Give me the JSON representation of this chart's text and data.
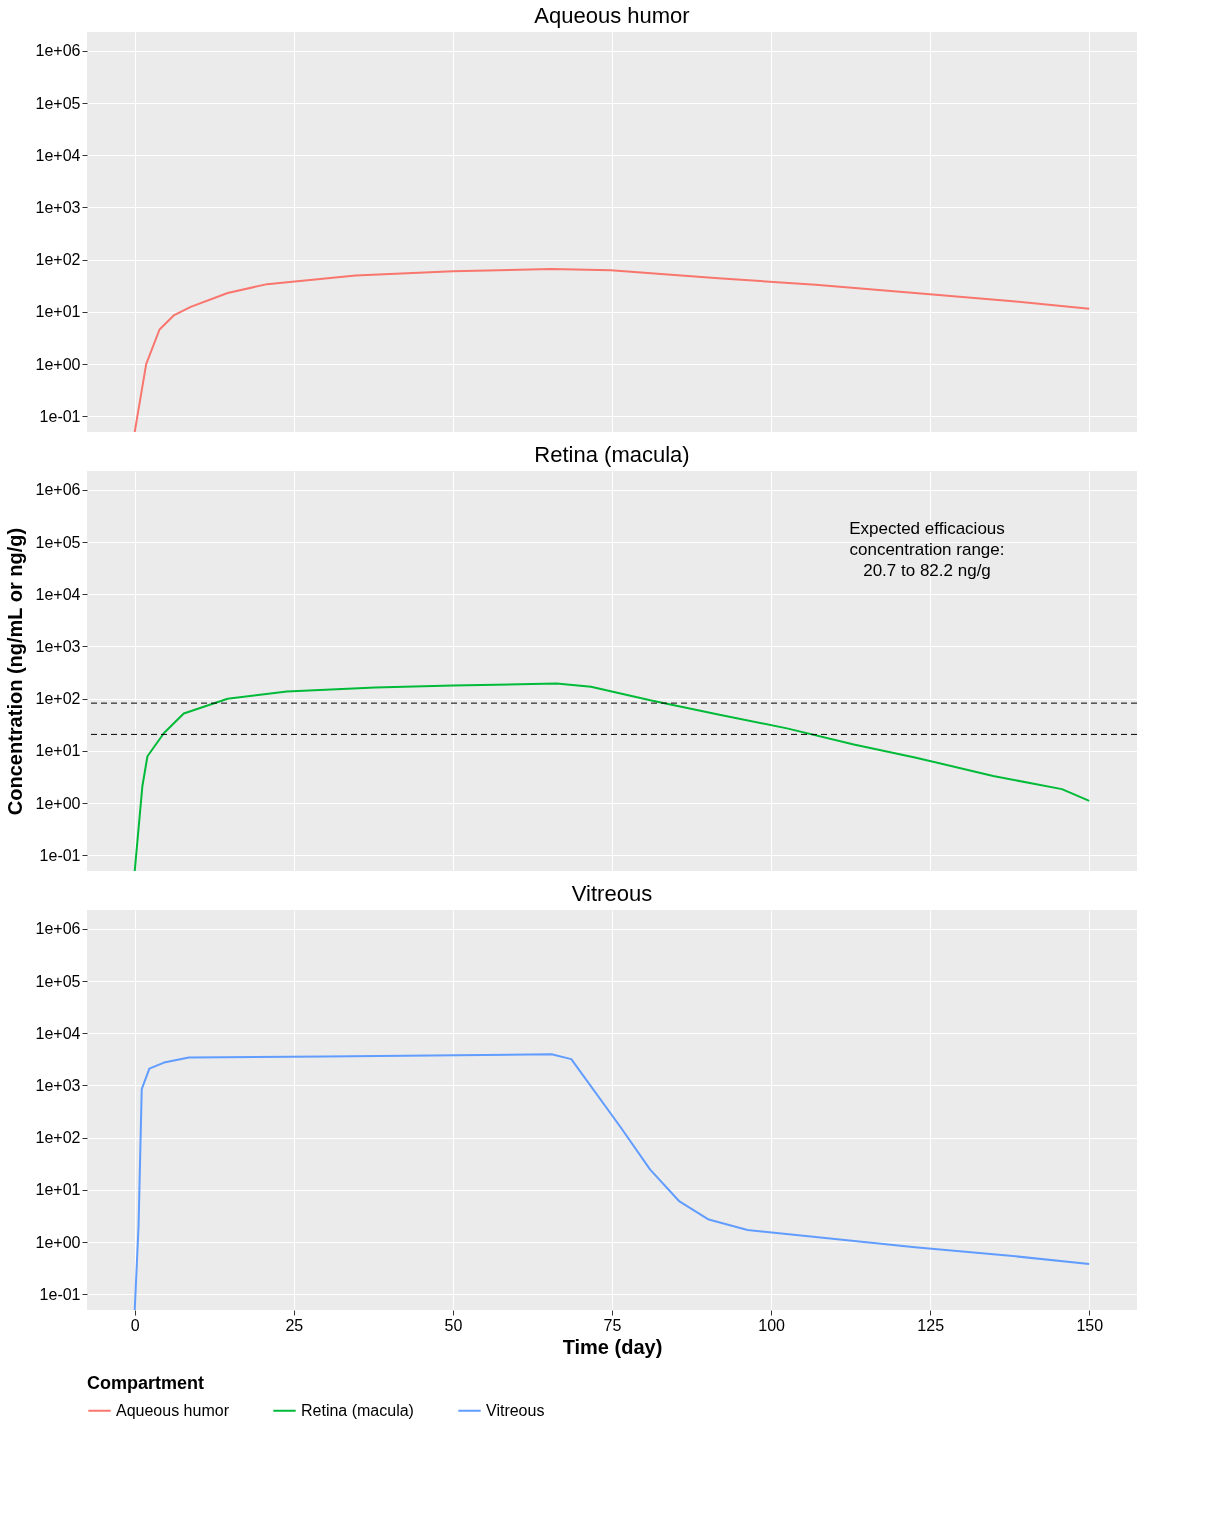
{
  "chart_data": [
    {
      "type": "line",
      "title": "Aqueous humor",
      "log": "y",
      "grid": true,
      "legend": "bottom",
      "tick_labels": "y",
      "line_style": "solid",
      "marker": "none",
      "xlim": [
        -7.5,
        157.5
      ],
      "xticks": [
        0,
        25,
        50,
        75,
        100,
        125,
        150
      ],
      "ylim": [
        0.05,
        2300000
      ],
      "yticks": [
        {
          "value": 0.1,
          "label": "1e-01"
        },
        {
          "value": 1,
          "label": "1e+00"
        },
        {
          "value": 10,
          "label": "1e+01"
        },
        {
          "value": 100,
          "label": "1e+02"
        },
        {
          "value": 1000,
          "label": "1e+03"
        },
        {
          "value": 10000,
          "label": "1e+04"
        },
        {
          "value": 100000,
          "label": "1e+05"
        },
        {
          "value": 1000000,
          "label": "1e+06"
        }
      ],
      "series": [
        {
          "name": "Aqueous humor",
          "color": "#f8766d",
          "x": [
            0,
            1.8,
            3.9,
            6.2,
            8.8,
            14.6,
            20.8,
            34.7,
            50,
            65.5,
            74.8,
            91.7,
            107,
            122.6,
            138,
            150
          ],
          "values": [
            0.05,
            1.0,
            4.6,
            8.7,
            12.5,
            23,
            34,
            50,
            60,
            66,
            63,
            44,
            33,
            23,
            16,
            11.5
          ]
        }
      ]
    },
    {
      "type": "line",
      "title": "Retina (macula)",
      "ylabel": "Concentration (ng/mL or ng/g)",
      "log": "y",
      "grid": true,
      "legend": "bottom",
      "tick_labels": "y",
      "line_style": "solid",
      "marker": "none",
      "xlim": [
        -7.5,
        157.5
      ],
      "xticks": [
        0,
        25,
        50,
        75,
        100,
        125,
        150
      ],
      "ylim": [
        0.05,
        2300000
      ],
      "yticks": [
        {
          "value": 0.1,
          "label": "1e-01"
        },
        {
          "value": 1,
          "label": "1e+00"
        },
        {
          "value": 10,
          "label": "1e+01"
        },
        {
          "value": 100,
          "label": "1e+02"
        },
        {
          "value": 1000,
          "label": "1e+03"
        },
        {
          "value": 10000,
          "label": "1e+04"
        },
        {
          "value": 100000,
          "label": "1e+05"
        },
        {
          "value": 1000000,
          "label": "1e+06"
        }
      ],
      "ref_lines": [
        {
          "axis": "y",
          "value": 82.2,
          "color": "#000000",
          "line_style": "dashed"
        },
        {
          "axis": "y",
          "value": 20.7,
          "color": "#000000",
          "line_style": "dashed"
        }
      ],
      "annotations": [
        "Expected efficacious\nconcentration range:\n20.7 to 82.2 ng/g"
      ],
      "series": [
        {
          "name": "Retina (macula)",
          "color": "#00ba38",
          "x": [
            0,
            1.2,
            2.0,
            4.6,
            7.7,
            14.6,
            23.9,
            37.8,
            50,
            66.3,
            71.7,
            81,
            91.7,
            102.5,
            113,
            122.6,
            134.9,
            145.7,
            150
          ],
          "values": [
            0.05,
            2.1,
            7.9,
            22,
            52,
            100,
            137,
            163,
            178,
            195,
            170,
            93,
            50,
            27,
            13.3,
            7.5,
            3.3,
            1.85,
            1.1
          ]
        }
      ]
    },
    {
      "type": "line",
      "title": "Vitreous",
      "xlabel": "Time (day)",
      "log": "y",
      "grid": true,
      "legend": "bottom",
      "legend_title": "Compartment",
      "line_style": "solid",
      "marker": "none",
      "xlim": [
        -7.5,
        157.5
      ],
      "xticks": [
        0,
        25,
        50,
        75,
        100,
        125,
        150
      ],
      "ylim": [
        0.05,
        2300000
      ],
      "yticks": [
        {
          "value": 0.1,
          "label": "1e-01"
        },
        {
          "value": 1,
          "label": "1e+00"
        },
        {
          "value": 10,
          "label": "1e+01"
        },
        {
          "value": 100,
          "label": "1e+02"
        },
        {
          "value": 1000,
          "label": "1e+03"
        },
        {
          "value": 10000,
          "label": "1e+04"
        },
        {
          "value": 100000,
          "label": "1e+05"
        },
        {
          "value": 1000000,
          "label": "1e+06"
        }
      ],
      "series": [
        {
          "name": "Vitreous",
          "color": "#619cff",
          "x": [
            0,
            0.6,
            1.1,
            2.3,
            4.6,
            8.5,
            30,
            65.5,
            68.6,
            76.3,
            81,
            85.6,
            90.2,
            96.3,
            107,
            122.6,
            138,
            150
          ],
          "values": [
            0.05,
            2,
            850,
            2100,
            2750,
            3450,
            3600,
            3950,
            3200,
            162,
            24.5,
            6,
            2.7,
            1.7,
            1.25,
            0.8,
            0.54,
            0.38
          ]
        }
      ]
    }
  ]
}
